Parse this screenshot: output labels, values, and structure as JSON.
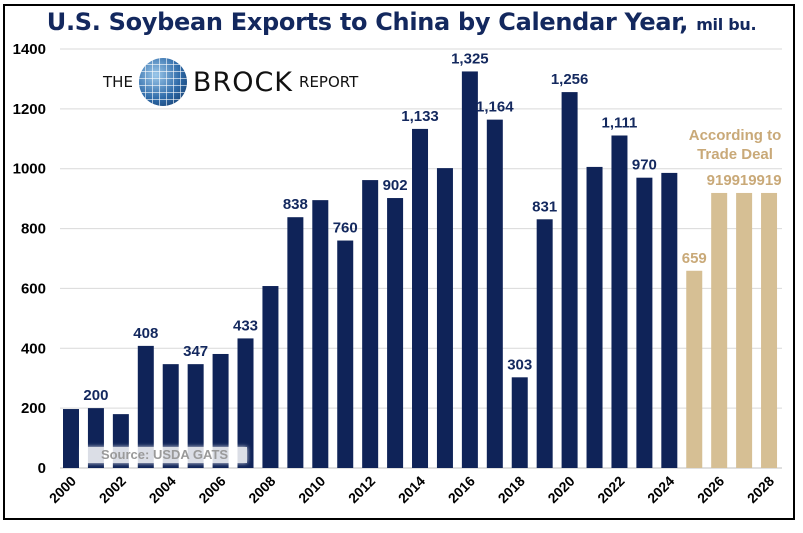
{
  "chart_data": {
    "type": "bar",
    "title": "U.S. Soybean Exports to China by Calendar Year,",
    "title_units": "mil bu.",
    "xlabel": "",
    "ylabel": "",
    "ylim": [
      0,
      1400
    ],
    "yticks": [
      "0",
      "200",
      "400",
      "600",
      "800",
      "1000",
      "1200",
      "1400"
    ],
    "grid": true,
    "categories": [
      2000,
      2001,
      2002,
      2003,
      2004,
      2005,
      2006,
      2007,
      2008,
      2009,
      2010,
      2011,
      2012,
      2013,
      2014,
      2015,
      2016,
      2017,
      2018,
      2019,
      2020,
      2021,
      2022,
      2023,
      2024,
      2025,
      2026,
      2027,
      2028
    ],
    "xtick_labels": [
      "2000",
      "2002",
      "2004",
      "2006",
      "2008",
      "2010",
      "2012",
      "2014",
      "2016",
      "2018",
      "2020",
      "2022",
      "2024",
      "2026",
      "2028"
    ],
    "values": [
      197,
      200,
      180,
      408,
      347,
      347,
      381,
      433,
      608,
      838,
      895,
      760,
      962,
      902,
      1133,
      1002,
      1325,
      1164,
      303,
      831,
      1256,
      1006,
      1111,
      970,
      986,
      659,
      919,
      919,
      919
    ],
    "data_labels": [
      "",
      "200",
      "",
      "408",
      "",
      "347",
      "",
      "433",
      "",
      "838",
      "",
      "760",
      "",
      "902",
      "1,133",
      "",
      "1,325",
      "1,164",
      "303",
      "831",
      "1,256",
      "",
      "1,111",
      "970",
      "",
      "659",
      "919",
      "919",
      "919"
    ],
    "series_type": [
      "actual",
      "actual",
      "actual",
      "actual",
      "actual",
      "actual",
      "actual",
      "actual",
      "actual",
      "actual",
      "actual",
      "actual",
      "actual",
      "actual",
      "actual",
      "actual",
      "actual",
      "actual",
      "actual",
      "actual",
      "actual",
      "actual",
      "actual",
      "actual",
      "actual",
      "trade",
      "trade",
      "trade",
      "trade"
    ],
    "colors": {
      "actual": "#0f2358",
      "trade": "#d6bf94",
      "actual_label": "#13285e",
      "trade_label": "#c9a978"
    },
    "annotations": [
      "According to",
      "Trade Deal"
    ],
    "source": "Source: USDA GATS"
  },
  "logo": {
    "the": "THE",
    "name": "BROCK",
    "report": "REPORT"
  }
}
